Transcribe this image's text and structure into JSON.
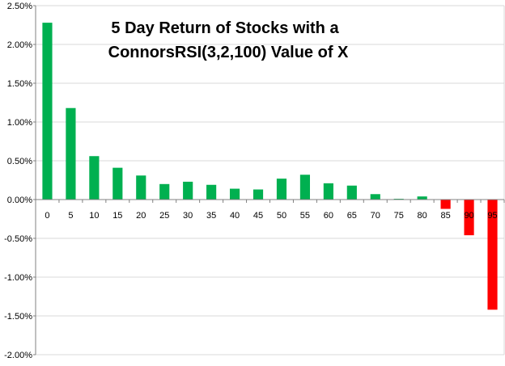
{
  "chart_data": {
    "type": "bar",
    "title_lines": [
      "5 Day Return of Stocks with a",
      "ConnorsRSI(3,2,100) Value of X"
    ],
    "xlabel": "",
    "ylabel": "",
    "categories": [
      "0",
      "5",
      "10",
      "15",
      "20",
      "25",
      "30",
      "35",
      "40",
      "45",
      "50",
      "55",
      "60",
      "65",
      "70",
      "75",
      "80",
      "85",
      "90",
      "95"
    ],
    "values": [
      2.28,
      1.18,
      0.56,
      0.41,
      0.31,
      0.2,
      0.23,
      0.19,
      0.14,
      0.13,
      0.27,
      0.32,
      0.21,
      0.18,
      0.07,
      0.01,
      0.04,
      -0.12,
      -0.46,
      -1.42
    ],
    "ylim": [
      -2.0,
      2.5
    ],
    "yticks": [
      2.5,
      2.0,
      1.5,
      1.0,
      0.5,
      0.0,
      -0.5,
      -1.0,
      -1.5,
      -2.0
    ],
    "ytick_labels": [
      "2.50%",
      "2.00%",
      "1.50%",
      "1.00%",
      "0.50%",
      "0.00%",
      "-0.50%",
      "-1.00%",
      "-1.50%",
      "-2.00%"
    ],
    "grid": true,
    "legend": "none",
    "colors": {
      "positive": "#00b050",
      "negative": "#ff0000",
      "grid": "#d9d9d9",
      "axis": "#808080"
    }
  }
}
